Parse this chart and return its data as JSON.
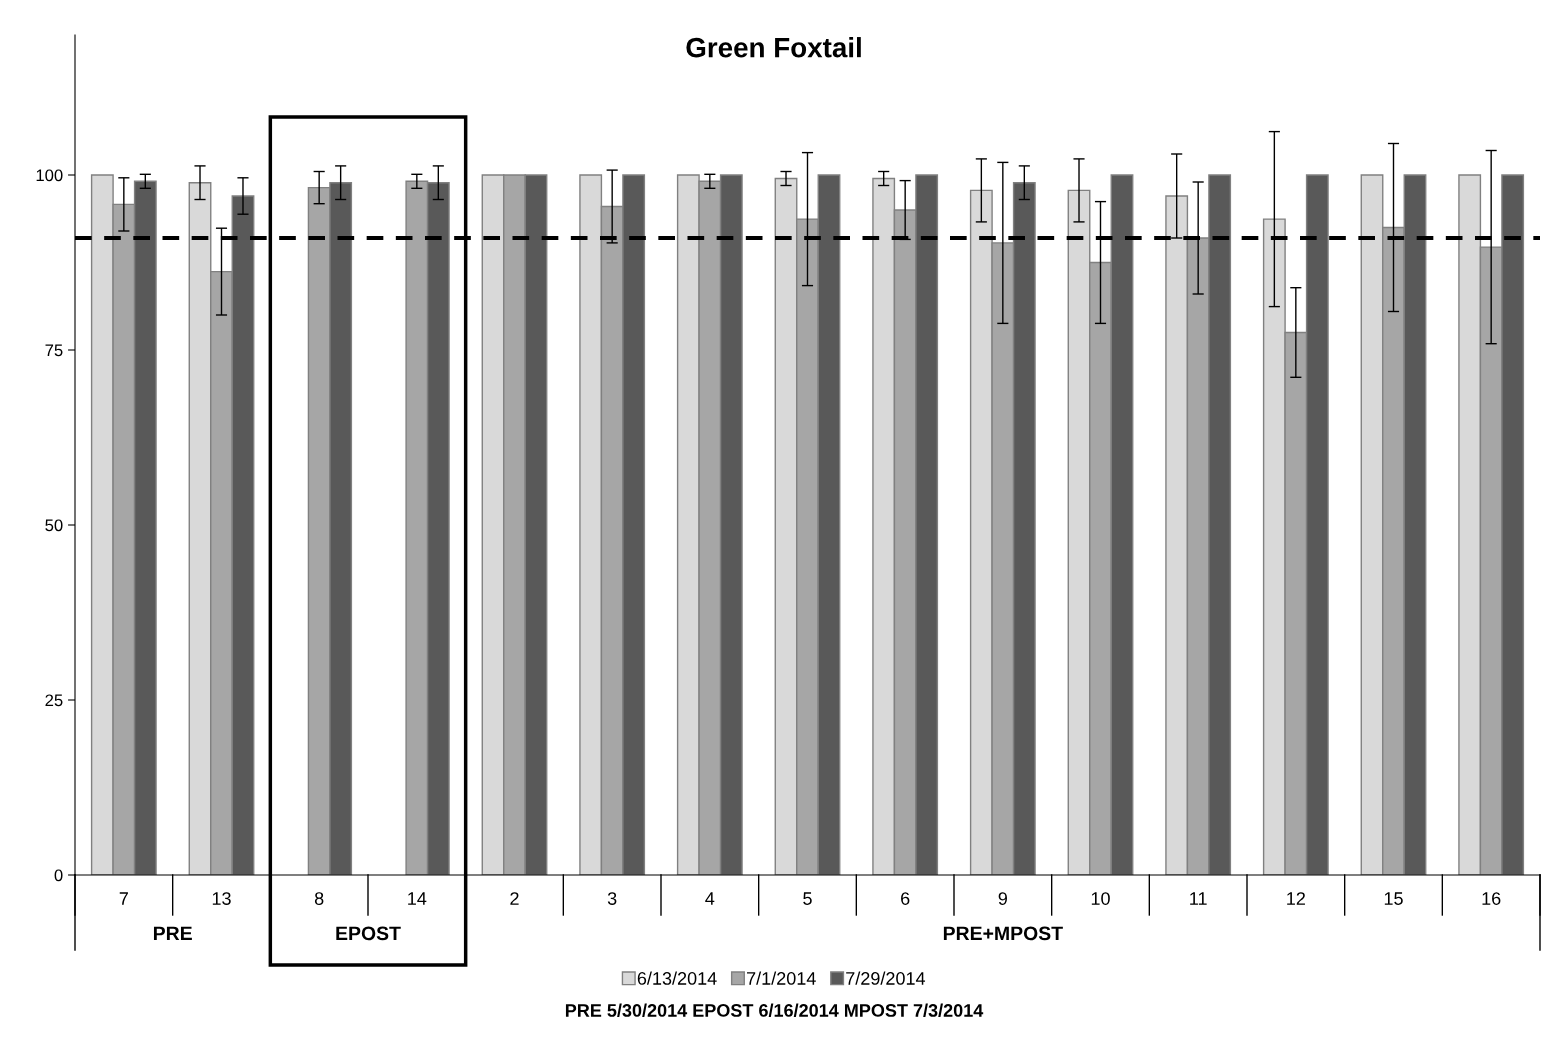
{
  "chart_data": {
    "type": "bar",
    "title": "Green Foxtail",
    "categories": [
      "7",
      "13",
      "8",
      "14",
      "2",
      "3",
      "4",
      "5",
      "6",
      "9",
      "10",
      "11",
      "12",
      "15",
      "16"
    ],
    "series": [
      {
        "name": "6/13/2014",
        "color": "#d9d9d9",
        "values": [
          100,
          98.9,
          null,
          null,
          100,
          100,
          100,
          99.5,
          99.5,
          97.8,
          97.8,
          97,
          93.7,
          100,
          100
        ],
        "errors": [
          null,
          2.4,
          null,
          null,
          null,
          null,
          null,
          1,
          1,
          4.5,
          4.5,
          6,
          12.5,
          null,
          null
        ]
      },
      {
        "name": "7/1/2014",
        "color": "#a6a6a6",
        "values": [
          95.8,
          86.2,
          98.2,
          99.1,
          100,
          95.5,
          99.1,
          93.7,
          95,
          90.3,
          87.5,
          91,
          77.5,
          92.5,
          89.7
        ],
        "errors": [
          3.8,
          6.2,
          2.3,
          1,
          null,
          5.2,
          1,
          9.5,
          4.2,
          11.5,
          8.7,
          8,
          6.4,
          12,
          13.8
        ]
      },
      {
        "name": "7/29/2014",
        "color": "#595959",
        "values": [
          99.1,
          97,
          98.9,
          98.9,
          100,
          100,
          100,
          100,
          100,
          98.9,
          100,
          100,
          100,
          100,
          100
        ],
        "errors": [
          1,
          2.6,
          2.4,
          2.4,
          null,
          null,
          null,
          null,
          null,
          2.4,
          null,
          null,
          null,
          null,
          null
        ]
      }
    ],
    "ylim": [
      0,
      120
    ],
    "yticks": [
      0,
      25,
      50,
      75,
      100
    ],
    "grid": false,
    "legend": "bottom",
    "ref_lines": [
      {
        "axis": "y",
        "value": 91,
        "color": "#000000",
        "line_style": "dashed"
      }
    ],
    "annotations": [
      "PRE",
      "EPOST",
      "PRE+MPOST",
      "PRE 5/30/2014 EPOST 6/16/2014 MPOST 7/3/2014"
    ]
  }
}
